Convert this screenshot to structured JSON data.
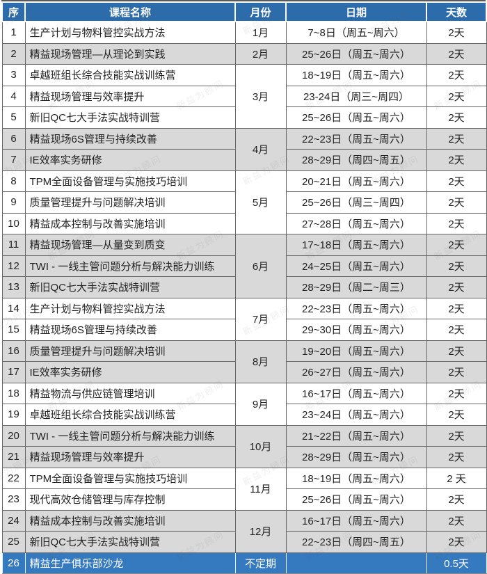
{
  "table": {
    "headers": [
      "序",
      "课程名称",
      "月份",
      "日期",
      "天数"
    ],
    "watermark": "新益为顾问",
    "colors": {
      "header_bg": "#2d6cab",
      "club_row_bg": "#3579bf",
      "stripe_gray": "#d9d9d9",
      "border": "#666666",
      "header_text": "#ffffff",
      "body_text": "#222222"
    },
    "groups": [
      {
        "month": "1月",
        "shade": "light",
        "rows": [
          {
            "no": "1",
            "course": "生产计划与物料管控实战方法",
            "date": "7~8日（周五~周六）",
            "days": "2天"
          }
        ]
      },
      {
        "month": "2月",
        "shade": "dark",
        "rows": [
          {
            "no": "2",
            "course": "精益现场管理—从理论到实践",
            "date": "25~26日（周五~周六）",
            "days": "2天"
          }
        ]
      },
      {
        "month": "3月",
        "shade": "light",
        "rows": [
          {
            "no": "3",
            "course": "卓越班组长综合技能实战训练营",
            "date": "18~19日（周五~周六）",
            "days": "2天"
          },
          {
            "no": "4",
            "course": "精益现场管理与效率提升",
            "date": "23-24日（周三~周四）",
            "days": "2天"
          },
          {
            "no": "5",
            "course": "新旧QC七大手法实战特训营",
            "date": "25~26日（周五~周六）",
            "days": "2天"
          }
        ]
      },
      {
        "month": "4月",
        "shade": "dark",
        "rows": [
          {
            "no": "6",
            "course": "精益现场6S管理与持续改善",
            "date": "22~23日（周五~周六）",
            "days": "2天"
          },
          {
            "no": "7",
            "course": "IE效率实务研修",
            "date": "28~29日（周四~周五）",
            "days": "2天"
          }
        ]
      },
      {
        "month": "5月",
        "shade": "light",
        "rows": [
          {
            "no": "8",
            "course": "TPM全面设备管理与实施技巧培训",
            "date": "20~21日（周五~周六）",
            "days": "2天"
          },
          {
            "no": "9",
            "course": "质量管理提升与问题解决培训",
            "date": "25~26日（周三~周四）",
            "days": "2天"
          },
          {
            "no": "10",
            "course": "精益成本控制与改善实施培训",
            "date": "27~28日（周五~周六）",
            "days": "2天"
          }
        ]
      },
      {
        "month": "6月",
        "shade": "dark",
        "rows": [
          {
            "no": "11",
            "course": "精益现场管理—从量变到质变",
            "date": "17~18日（周五~周六）",
            "days": "2天"
          },
          {
            "no": "12",
            "course": "TWI - 一线主管问题分析与解决能力训练",
            "date": "24~25日（周五~周六）",
            "days": "2天"
          },
          {
            "no": "13",
            "course": "新旧QC七大手法实战特训营",
            "date": "28~29日（周二~周三）",
            "days": "2天"
          }
        ]
      },
      {
        "month": "7月",
        "shade": "light",
        "rows": [
          {
            "no": "14",
            "course": "生产计划与物料管控实战方法",
            "date": "22~23日（周五~周六）",
            "days": "2天"
          },
          {
            "no": "15",
            "course": "精益现场6S管理与持续改善",
            "date": "29~30日（周五~周六）",
            "days": "2天"
          }
        ]
      },
      {
        "month": "8月",
        "shade": "dark",
        "rows": [
          {
            "no": "16",
            "course": "质量管理提升与问题解决培训",
            "date": "19~20日（周五~周六）",
            "days": "2天"
          },
          {
            "no": "17",
            "course": "IE效率实务研修",
            "date": "26~27日（周五~周六）",
            "days": "2天"
          }
        ]
      },
      {
        "month": "9月",
        "shade": "light",
        "rows": [
          {
            "no": "18",
            "course": "精益物流与供应链管理培训",
            "date": "16~17日（周五~周六）",
            "days": "2天"
          },
          {
            "no": "19",
            "course": "卓越班组长综合技能实战训练营",
            "date": "23~24日（周五~周六）",
            "days": "2天"
          }
        ]
      },
      {
        "month": "10月",
        "shade": "dark",
        "rows": [
          {
            "no": "20",
            "course": "TWI - 一线主管问题分析与解决能力训练",
            "date": "21~22日（周五~周六）",
            "days": "2天"
          },
          {
            "no": "21",
            "course": "精益现场管理与效率提升",
            "date": "28~29日（周五~周六）",
            "days": "2天"
          }
        ]
      },
      {
        "month": "11月",
        "shade": "light",
        "rows": [
          {
            "no": "22",
            "course": "TPM全面设备管理与实施技巧培训",
            "date": "18~19日（周五~周六）",
            "days": "2 天"
          },
          {
            "no": "23",
            "course": "现代高效仓储管理与库存控制",
            "date": "25~26日（周五~周六）",
            "days": "2天"
          }
        ]
      },
      {
        "month": "12月",
        "shade": "dark",
        "rows": [
          {
            "no": "24",
            "course": "精益成本控制与改善实施培训",
            "date": "16~17日（周五~周六）",
            "days": "2天"
          },
          {
            "no": "25",
            "course": "新旧QC七大手法实战特训营",
            "date": "22~23日（周四~周五）",
            "days": "2天"
          }
        ]
      },
      {
        "month": "不定期",
        "shade": "blue",
        "rows": [
          {
            "no": "26",
            "course": "精益生产俱乐部沙龙",
            "date": "",
            "days": "0.5天"
          }
        ]
      }
    ]
  }
}
